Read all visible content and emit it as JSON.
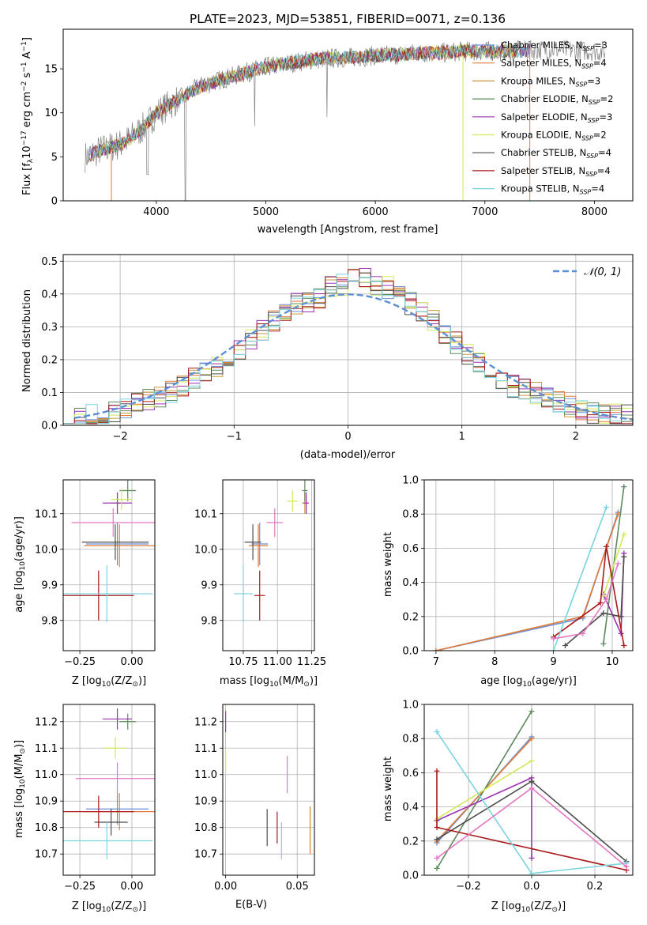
{
  "figure_title": "PLATE=2023, MJD=53851, FIBERID=0071, z=0.136",
  "colors": {
    "Chabrier MILES": "#6b8fd8",
    "Salpeter MILES": "#e07b39",
    "Kroupa MILES": "#c59a3c",
    "Chabrier ELODIE": "#5d8a5d",
    "Salpeter ELODIE": "#9b30b0",
    "Kroupa ELODIE": "#d4e85a",
    "Chabrier STELIB": "#4d4d4d",
    "Salpeter STELIB": "#aa1a1a",
    "Kroupa STELIB": "#79d4de",
    "data": "#808080",
    "normal": "#5b8fd6"
  },
  "chart_data": [
    {
      "id": "spectrum",
      "type": "line",
      "title": "PLATE=2023, MJD=53851, FIBERID=0071, z=0.136",
      "xlabel": "wavelength [Angstrom, rest frame]",
      "ylabel_parts": [
        "Flux [f",
        "λ",
        "10",
        "−17",
        " erg cm",
        "−2",
        " s",
        "−1",
        " A",
        "−1",
        "]"
      ],
      "xlim": [
        3150,
        8350
      ],
      "ylim": [
        0,
        19.5
      ],
      "xticks": [
        4000,
        5000,
        6000,
        7000,
        8000
      ],
      "yticks": [
        0,
        5,
        10,
        15
      ],
      "legend_position": "top-right",
      "legend": [
        {
          "name": "Chabrier MILES",
          "nssp": "3"
        },
        {
          "name": "Salpeter MILES",
          "nssp": "4"
        },
        {
          "name": "Kroupa MILES",
          "nssp": "3"
        },
        {
          "name": "Chabrier ELODIE",
          "nssp": "2"
        },
        {
          "name": "Salpeter ELODIE",
          "nssp": "3"
        },
        {
          "name": "Kroupa ELODIE",
          "nssp": "2"
        },
        {
          "name": "Chabrier STELIB",
          "nssp": "4"
        },
        {
          "name": "Salpeter STELIB",
          "nssp": "4"
        },
        {
          "name": "Kroupa STELIB",
          "nssp": "4"
        }
      ],
      "continuum": {
        "x": [
          3350,
          3500,
          3700,
          3900,
          4000,
          4200,
          4400,
          4600,
          4800,
          5000,
          5200,
          5400,
          5600,
          5800,
          6000,
          6200,
          6400,
          6600,
          6800,
          7000,
          7200,
          7400,
          7600,
          7800,
          8000,
          8100
        ],
        "y": [
          5.0,
          5.8,
          6.5,
          8.5,
          10.0,
          11.5,
          13.0,
          13.8,
          14.5,
          15.2,
          15.6,
          16.0,
          16.2,
          16.3,
          16.5,
          16.6,
          16.8,
          16.8,
          17.0,
          17.0,
          17.0,
          17.1,
          17.2,
          17.1,
          17.0,
          17.0
        ]
      }
    },
    {
      "id": "residuals",
      "type": "step",
      "xlabel": "(data-model)/error",
      "ylabel": "Normed distribution",
      "xlim": [
        -2.5,
        2.5
      ],
      "ylim": [
        0,
        0.52
      ],
      "xticks": [
        -2,
        -1,
        0,
        1,
        2
      ],
      "yticks": [
        0.0,
        0.1,
        0.2,
        0.3,
        0.4,
        0.5
      ],
      "legend_position": "top-right",
      "legend_label": "𝒩(0, 1)",
      "bin_edges": [
        -2.5,
        -2.4,
        -2.3,
        -2.2,
        -2.1,
        -2.0,
        -1.9,
        -1.8,
        -1.7,
        -1.6,
        -1.5,
        -1.4,
        -1.3,
        -1.2,
        -1.1,
        -1.0,
        -0.9,
        -0.8,
        -0.7,
        -0.6,
        -0.5,
        -0.4,
        -0.3,
        -0.2,
        -0.1,
        0.0,
        0.1,
        0.2,
        0.3,
        0.4,
        0.5,
        0.6,
        0.7,
        0.8,
        0.9,
        1.0,
        1.1,
        1.2,
        1.3,
        1.4,
        1.5,
        1.6,
        1.7,
        1.8,
        1.9,
        2.0,
        2.1,
        2.2,
        2.3,
        2.4,
        2.5
      ],
      "base_values": [
        0.03,
        0.025,
        0.03,
        0.035,
        0.04,
        0.05,
        0.065,
        0.08,
        0.09,
        0.1,
        0.12,
        0.14,
        0.16,
        0.18,
        0.2,
        0.23,
        0.26,
        0.29,
        0.32,
        0.35,
        0.37,
        0.38,
        0.39,
        0.42,
        0.43,
        0.46,
        0.45,
        0.43,
        0.42,
        0.4,
        0.37,
        0.34,
        0.32,
        0.28,
        0.25,
        0.22,
        0.19,
        0.16,
        0.14,
        0.12,
        0.11,
        0.1,
        0.08,
        0.07,
        0.06,
        0.05,
        0.04,
        0.04,
        0.03,
        0.03
      ]
    },
    {
      "id": "age-vs-Z",
      "type": "scatter",
      "xlabel_parts": [
        "Z [log",
        "10",
        "(Z/Z",
        "⊙",
        ")]"
      ],
      "ylabel_parts": [
        "age  [log",
        "10",
        "(age/yr)]"
      ],
      "xlim": [
        -0.33,
        0.11
      ],
      "ylim": [
        9.715,
        10.195
      ],
      "xticks": [
        -0.25,
        0.0
      ],
      "yticks": [
        9.8,
        9.9,
        10.0,
        10.1
      ],
      "points": [
        {
          "model": "Chabrier MILES",
          "x": -0.07,
          "xerr": 0.15,
          "y": 10.015,
          "yerr": 0.06
        },
        {
          "model": "Salpeter MILES",
          "x": -0.06,
          "xerr": 0.17,
          "y": 10.01,
          "yerr": 0.06
        },
        {
          "model": "Kroupa MILES",
          "x": -0.07,
          "xerr": 0.03,
          "y": 10.13,
          "yerr": 0.03
        },
        {
          "model": "Chabrier ELODIE",
          "x": -0.02,
          "xerr": 0.04,
          "y": 10.165,
          "yerr": 0.03
        },
        {
          "model": "Salpeter ELODIE",
          "x": -0.07,
          "xerr": 0.07,
          "y": 10.13,
          "yerr": 0.03
        },
        {
          "model": "Kroupa ELODIE",
          "x": -0.05,
          "xerr": 0.05,
          "y": 10.14,
          "yerr": 0.03
        },
        {
          "model": "Chabrier STELIB",
          "x": -0.08,
          "xerr": 0.16,
          "y": 10.02,
          "yerr": 0.05
        },
        {
          "model": "Salpeter STELIB",
          "x": -0.16,
          "xerr": 0.17,
          "y": 9.87,
          "yerr": 0.07
        },
        {
          "model": "Kroupa STELIB",
          "x": -0.12,
          "xerr": 0.22,
          "y": 9.875,
          "yerr": 0.08
        },
        {
          "model": "Pink",
          "x": -0.09,
          "xerr": 0.2,
          "y": 10.075,
          "yerr": 0.04
        }
      ]
    },
    {
      "id": "age-vs-mass",
      "type": "scatter",
      "xlabel_parts": [
        "mass [log",
        "10",
        "(M/M",
        "⊙",
        ")]"
      ],
      "xlim": [
        10.6,
        11.27
      ],
      "ylim": [
        9.715,
        10.195
      ],
      "xticks": [
        10.75,
        11.0,
        11.25
      ],
      "yticks": [
        9.8,
        9.9,
        10.0,
        10.1
      ],
      "points": [
        {
          "model": "Chabrier MILES",
          "x": 10.87,
          "xerr": 0.06,
          "y": 10.015,
          "yerr": 0.06
        },
        {
          "model": "Salpeter MILES",
          "x": 10.86,
          "xerr": 0.07,
          "y": 10.01,
          "yerr": 0.06
        },
        {
          "model": "Kroupa MILES",
          "x": 11.2,
          "xerr": 0.02,
          "y": 10.13,
          "yerr": 0.03
        },
        {
          "model": "Chabrier ELODIE",
          "x": 11.2,
          "xerr": 0.02,
          "y": 10.165,
          "yerr": 0.03
        },
        {
          "model": "Salpeter ELODIE",
          "x": 11.21,
          "xerr": 0.02,
          "y": 10.13,
          "yerr": 0.03
        },
        {
          "model": "Kroupa ELODIE",
          "x": 11.11,
          "xerr": 0.04,
          "y": 10.135,
          "yerr": 0.03
        },
        {
          "model": "Chabrier STELIB",
          "x": 10.82,
          "xerr": 0.06,
          "y": 10.02,
          "yerr": 0.05
        },
        {
          "model": "Salpeter STELIB",
          "x": 10.87,
          "xerr": 0.04,
          "y": 9.87,
          "yerr": 0.07
        },
        {
          "model": "Kroupa STELIB",
          "x": 10.75,
          "xerr": 0.07,
          "y": 9.875,
          "yerr": 0.08
        },
        {
          "model": "Pink",
          "x": 10.98,
          "xerr": 0.06,
          "y": 10.075,
          "yerr": 0.04
        }
      ]
    },
    {
      "id": "mass-weight-vs-age",
      "type": "line",
      "xlabel_parts": [
        "age  [log",
        "10",
        "(age/yr)]"
      ],
      "ylabel": "mass weight",
      "xlim": [
        6.8,
        10.35
      ],
      "ylim": [
        0,
        1
      ],
      "xticks": [
        7,
        8,
        9,
        10
      ],
      "yticks": [
        0.0,
        0.2,
        0.4,
        0.6,
        0.8,
        1.0
      ],
      "series": [
        {
          "model": "Chabrier MILES",
          "x": [
            7.0,
            9.5,
            10.1
          ],
          "y": [
            0.0,
            0.19,
            0.81
          ]
        },
        {
          "model": "Salpeter MILES",
          "x": [
            7.0,
            9.5,
            10.1
          ],
          "y": [
            0.0,
            0.2,
            0.8
          ]
        },
        {
          "model": "Chabrier ELODIE",
          "x": [
            9.85,
            10.2
          ],
          "y": [
            0.04,
            0.96
          ]
        },
        {
          "model": "Salpeter ELODIE",
          "x": [
            9.85,
            10.15,
            10.2
          ],
          "y": [
            0.33,
            0.1,
            0.57
          ]
        },
        {
          "model": "Kroupa ELODIE",
          "x": [
            9.85,
            10.2
          ],
          "y": [
            0.32,
            0.68
          ]
        },
        {
          "model": "Chabrier STELIB",
          "x": [
            9.2,
            9.85,
            10.15,
            10.2
          ],
          "y": [
            0.03,
            0.22,
            0.2,
            0.55
          ]
        },
        {
          "model": "Salpeter STELIB",
          "x": [
            9.0,
            9.8,
            9.9,
            10.2
          ],
          "y": [
            0.08,
            0.28,
            0.61,
            0.03
          ]
        },
        {
          "model": "Kroupa STELIB",
          "x": [
            9.0,
            9.9
          ],
          "y": [
            0.0,
            0.84
          ]
        },
        {
          "model": "Pink",
          "x": [
            9.0,
            9.5,
            9.9,
            10.1
          ],
          "y": [
            0.07,
            0.1,
            0.3,
            0.51
          ]
        }
      ]
    },
    {
      "id": "mass-vs-Z",
      "type": "scatter",
      "xlabel_parts": [
        "Z [log",
        "10",
        "(Z/Z",
        "⊙",
        ")]"
      ],
      "ylabel_parts": [
        "mass [log",
        "10",
        "(M/M",
        "⊙",
        ")]"
      ],
      "xlim": [
        -0.33,
        0.11
      ],
      "ylim": [
        10.62,
        11.265
      ],
      "xticks": [
        -0.25,
        0.0
      ],
      "yticks": [
        10.7,
        10.8,
        10.9,
        11.0,
        11.1,
        11.2
      ],
      "points": [
        {
          "model": "Chabrier MILES",
          "x": -0.07,
          "xerr": 0.15,
          "y": 10.87,
          "yerr": 0.06
        },
        {
          "model": "Salpeter MILES",
          "x": -0.06,
          "xerr": 0.17,
          "y": 10.86,
          "yerr": 0.07
        },
        {
          "model": "Chabrier ELODIE",
          "x": -0.02,
          "xerr": 0.04,
          "y": 11.2,
          "yerr": 0.03
        },
        {
          "model": "Salpeter ELODIE",
          "x": -0.07,
          "xerr": 0.07,
          "y": 11.21,
          "yerr": 0.04
        },
        {
          "model": "Kroupa ELODIE",
          "x": -0.08,
          "xerr": 0.05,
          "y": 11.1,
          "yerr": 0.04
        },
        {
          "model": "Chabrier STELIB",
          "x": -0.1,
          "xerr": 0.08,
          "y": 10.82,
          "yerr": 0.05
        },
        {
          "model": "Salpeter STELIB",
          "x": -0.16,
          "xerr": 0.17,
          "y": 10.86,
          "yerr": 0.06
        },
        {
          "model": "Kroupa STELIB",
          "x": -0.12,
          "xerr": 0.22,
          "y": 10.75,
          "yerr": 0.07
        },
        {
          "model": "Pink",
          "x": -0.07,
          "xerr": 0.2,
          "y": 10.985,
          "yerr": 0.06
        }
      ]
    },
    {
      "id": "mass-vs-ebv",
      "type": "scatter",
      "xlabel": "E(B-V)",
      "xlim": [
        -0.002,
        0.062
      ],
      "ylim": [
        10.62,
        11.265
      ],
      "xticks": [
        0.0,
        0.05
      ],
      "yticks": [
        10.7,
        10.8,
        10.9,
        11.0,
        11.1,
        11.2
      ],
      "points": [
        {
          "model": "Salpeter MILES",
          "x": 0.059,
          "y": 10.79,
          "yerr": 0.09
        },
        {
          "model": "Kroupa MILES",
          "x": 0.059,
          "y": 10.8,
          "yerr": 0.08
        },
        {
          "model": "Salpeter ELODIE",
          "x": 0.0,
          "y": 11.2,
          "yerr": 0.04
        },
        {
          "model": "Kroupa ELODIE",
          "x": 0.0,
          "y": 11.05,
          "yerr": 0.05
        },
        {
          "model": "Chabrier STELIB",
          "x": 0.029,
          "y": 10.8,
          "yerr": 0.07
        },
        {
          "model": "Salpeter STELIB",
          "x": 0.036,
          "y": 10.8,
          "yerr": 0.06
        },
        {
          "model": "Kroupa STELIB",
          "x": 0.039,
          "y": 10.75,
          "yerr": 0.07
        },
        {
          "model": "Pink",
          "x": 0.043,
          "y": 11.0,
          "yerr": 0.07
        }
      ]
    },
    {
      "id": "mass-weight-vs-Z",
      "type": "line",
      "xlabel_parts": [
        "Z [log",
        "10",
        "(Z/Z",
        "⊙",
        ")]"
      ],
      "ylabel": "mass weight",
      "xlim": [
        -0.34,
        0.32
      ],
      "ylim": [
        0,
        1
      ],
      "xticks": [
        -0.2,
        0.0,
        0.2
      ],
      "yticks": [
        0.0,
        0.2,
        0.4,
        0.6,
        0.8,
        1.0
      ],
      "series": [
        {
          "model": "Chabrier MILES",
          "x": [
            -0.3,
            0.0
          ],
          "y": [
            0.19,
            0.81
          ]
        },
        {
          "model": "Salpeter MILES",
          "x": [
            -0.3,
            0.0
          ],
          "y": [
            0.2,
            0.8
          ]
        },
        {
          "model": "Chabrier ELODIE",
          "x": [
            -0.3,
            0.0
          ],
          "y": [
            0.04,
            0.96
          ]
        },
        {
          "model": "Salpeter ELODIE",
          "x": [
            -0.3,
            0.0,
            0.0
          ],
          "y": [
            0.32,
            0.57,
            0.1
          ]
        },
        {
          "model": "Kroupa ELODIE",
          "x": [
            -0.3,
            0.0
          ],
          "y": [
            0.33,
            0.67
          ]
        },
        {
          "model": "Chabrier STELIB",
          "x": [
            -0.3,
            0.0,
            0.3
          ],
          "y": [
            0.21,
            0.55,
            0.08
          ]
        },
        {
          "model": "Salpeter STELIB",
          "x": [
            -0.3,
            -0.3,
            0.3
          ],
          "y": [
            0.61,
            0.28,
            0.03
          ]
        },
        {
          "model": "Kroupa STELIB",
          "x": [
            -0.3,
            0.0,
            0.3
          ],
          "y": [
            0.84,
            0.01,
            0.07
          ]
        },
        {
          "model": "Pink",
          "x": [
            -0.3,
            0.0,
            0.3
          ],
          "y": [
            0.1,
            0.51,
            0.05
          ]
        }
      ]
    }
  ]
}
